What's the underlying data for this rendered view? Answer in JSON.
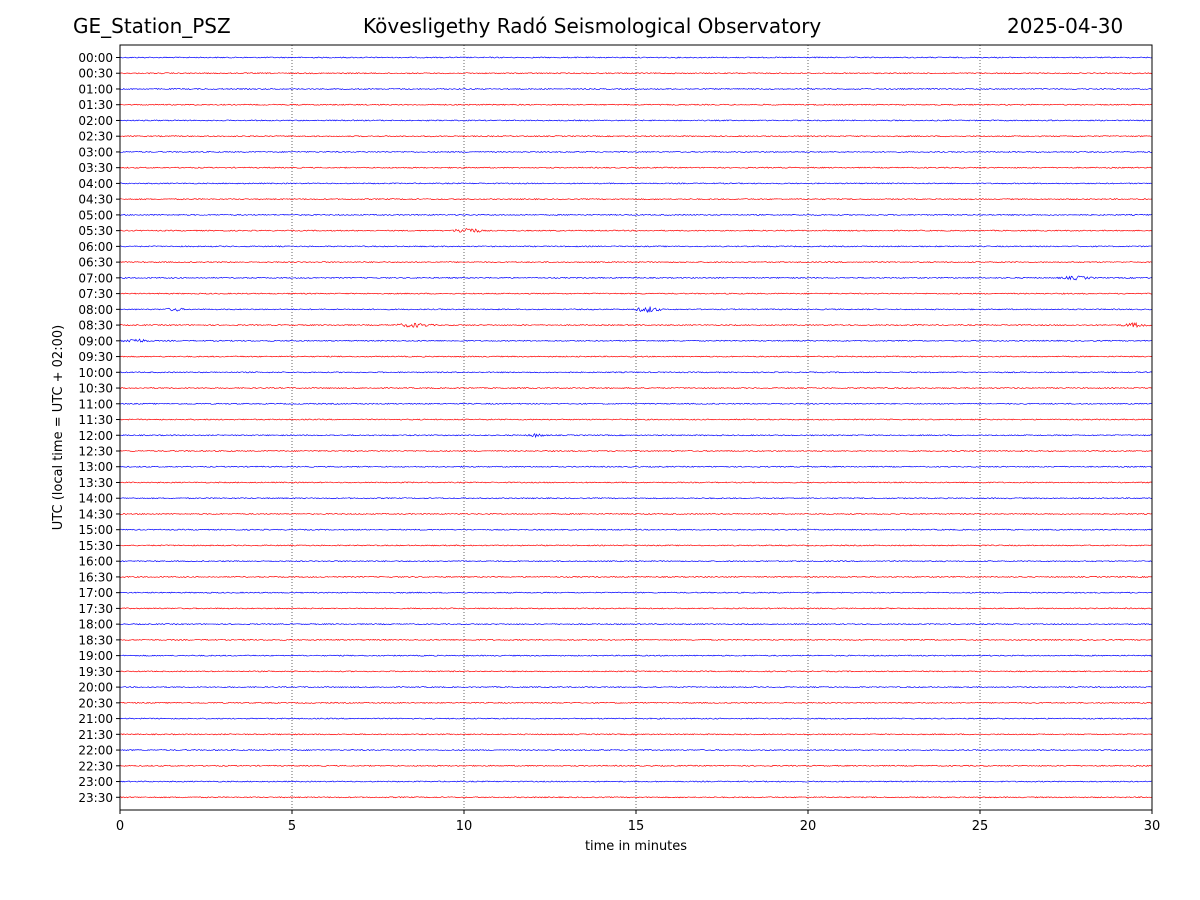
{
  "header": {
    "station": "GE_Station_PSZ",
    "title": "Kövesligethy Radó Seismological Observatory",
    "date": "2025-04-30"
  },
  "chart_data": {
    "type": "line",
    "title": "Kövesligethy Radó Seismological Observatory",
    "xlabel": "time in minutes",
    "ylabel": "UTC (local time = UTC + 02:00)",
    "xlim": [
      0,
      30
    ],
    "x_ticks": [
      0,
      5,
      10,
      15,
      20,
      25,
      30
    ],
    "grid": "vertical dotted at x ticks",
    "trace_colors": [
      "#0000ff",
      "#ff0000"
    ],
    "rows": [
      "00:00",
      "00:30",
      "01:00",
      "01:30",
      "02:00",
      "02:30",
      "03:00",
      "03:30",
      "04:00",
      "04:30",
      "05:00",
      "05:30",
      "06:00",
      "06:30",
      "07:00",
      "07:30",
      "08:00",
      "08:30",
      "09:00",
      "09:30",
      "10:00",
      "10:30",
      "11:00",
      "11:30",
      "12:00",
      "12:30",
      "13:00",
      "13:30",
      "14:00",
      "14:30",
      "15:00",
      "15:30",
      "16:00",
      "16:30",
      "17:00",
      "17:30",
      "18:00",
      "18:30",
      "19:00",
      "19:30",
      "20:00",
      "20:30",
      "21:00",
      "21:30",
      "22:00",
      "22:30",
      "23:00",
      "23:30"
    ],
    "events": [
      {
        "row": "05:30",
        "start": 9.6,
        "end": 10.6,
        "amplitude": 3
      },
      {
        "row": "07:00",
        "start": 27.2,
        "end": 28.4,
        "amplitude": 1.6
      },
      {
        "row": "08:00",
        "start": 1.3,
        "end": 1.9,
        "amplitude": 1.8
      },
      {
        "row": "08:00",
        "start": 14.9,
        "end": 15.8,
        "amplitude": 3
      },
      {
        "row": "08:30",
        "start": 7.9,
        "end": 9.2,
        "amplitude": 2
      },
      {
        "row": "08:30",
        "start": 29.0,
        "end": 30.0,
        "amplitude": 2
      },
      {
        "row": "09:00",
        "start": 0.0,
        "end": 0.9,
        "amplitude": 2
      },
      {
        "row": "12:00",
        "start": 11.8,
        "end": 12.4,
        "amplitude": 1.6
      }
    ]
  }
}
